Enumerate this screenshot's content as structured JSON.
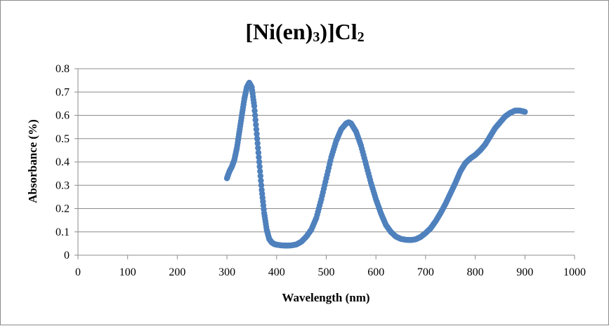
{
  "chart_data": {
    "type": "scatter",
    "title": {
      "main": "[Ni(en)",
      "sub1": "3",
      "mid": ")]Cl",
      "sub2": "2"
    },
    "xlabel": "Wavelength (nm)",
    "ylabel": "Absorbance (%)",
    "xlim": [
      0,
      1000
    ],
    "ylim": [
      0,
      0.8
    ],
    "xticks": [
      0,
      100,
      200,
      300,
      400,
      500,
      600,
      700,
      800,
      900,
      1000
    ],
    "yticks": [
      0,
      0.1,
      0.2,
      0.3,
      0.4,
      0.5,
      0.6,
      0.7,
      0.8
    ],
    "xtick_labels": [
      "0",
      "100",
      "200",
      "300",
      "400",
      "500",
      "600",
      "700",
      "800",
      "900",
      "1000"
    ],
    "ytick_labels": [
      "0",
      "0.1",
      "0.2",
      "0.3",
      "0.4",
      "0.5",
      "0.6",
      "0.7",
      "0.8"
    ],
    "grid": true,
    "legend": "none",
    "series": [
      {
        "color": "#4f81bd",
        "points": [
          [
            300,
            0.33
          ],
          [
            305,
            0.36
          ],
          [
            310,
            0.38
          ],
          [
            315,
            0.41
          ],
          [
            320,
            0.46
          ],
          [
            325,
            0.53
          ],
          [
            330,
            0.6
          ],
          [
            335,
            0.67
          ],
          [
            340,
            0.72
          ],
          [
            345,
            0.74
          ],
          [
            350,
            0.72
          ],
          [
            355,
            0.64
          ],
          [
            360,
            0.52
          ],
          [
            365,
            0.4
          ],
          [
            370,
            0.28
          ],
          [
            375,
            0.18
          ],
          [
            380,
            0.11
          ],
          [
            385,
            0.07
          ],
          [
            390,
            0.055
          ],
          [
            395,
            0.048
          ],
          [
            400,
            0.045
          ],
          [
            410,
            0.042
          ],
          [
            420,
            0.041
          ],
          [
            430,
            0.042
          ],
          [
            440,
            0.046
          ],
          [
            450,
            0.058
          ],
          [
            460,
            0.08
          ],
          [
            470,
            0.11
          ],
          [
            480,
            0.16
          ],
          [
            490,
            0.24
          ],
          [
            500,
            0.33
          ],
          [
            510,
            0.42
          ],
          [
            520,
            0.49
          ],
          [
            530,
            0.54
          ],
          [
            540,
            0.565
          ],
          [
            545,
            0.57
          ],
          [
            550,
            0.565
          ],
          [
            560,
            0.53
          ],
          [
            570,
            0.47
          ],
          [
            580,
            0.39
          ],
          [
            590,
            0.31
          ],
          [
            600,
            0.24
          ],
          [
            610,
            0.18
          ],
          [
            620,
            0.13
          ],
          [
            630,
            0.1
          ],
          [
            640,
            0.08
          ],
          [
            650,
            0.07
          ],
          [
            660,
            0.066
          ],
          [
            670,
            0.065
          ],
          [
            680,
            0.068
          ],
          [
            690,
            0.078
          ],
          [
            700,
            0.095
          ],
          [
            710,
            0.115
          ],
          [
            720,
            0.145
          ],
          [
            730,
            0.18
          ],
          [
            740,
            0.22
          ],
          [
            750,
            0.265
          ],
          [
            760,
            0.31
          ],
          [
            770,
            0.36
          ],
          [
            780,
            0.395
          ],
          [
            790,
            0.415
          ],
          [
            800,
            0.43
          ],
          [
            810,
            0.45
          ],
          [
            820,
            0.475
          ],
          [
            830,
            0.51
          ],
          [
            840,
            0.545
          ],
          [
            850,
            0.57
          ],
          [
            860,
            0.595
          ],
          [
            870,
            0.61
          ],
          [
            880,
            0.62
          ],
          [
            890,
            0.62
          ],
          [
            900,
            0.615
          ]
        ]
      }
    ]
  }
}
